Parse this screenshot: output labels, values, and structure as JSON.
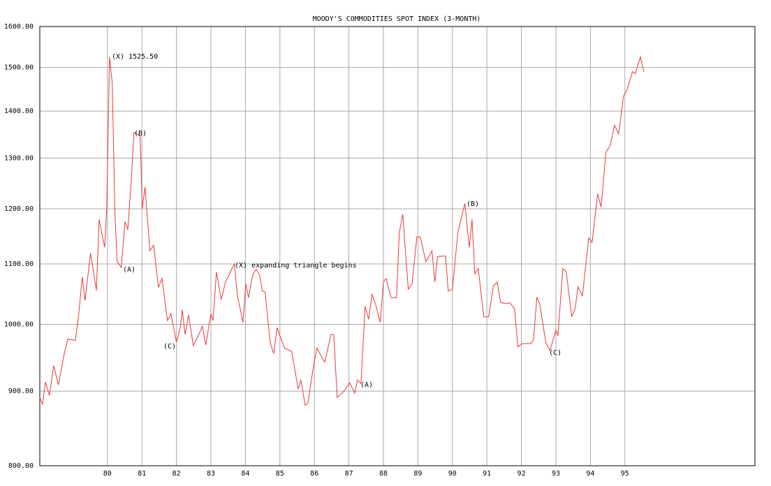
{
  "chart_data": {
    "type": "line",
    "title": "MOODY'S COMMODITIES SPOT INDEX (3-MONTH)",
    "log_scale": true,
    "grid": true,
    "xlim": [
      78.04,
      98.77
    ],
    "ylim": [
      800,
      1600
    ],
    "xticks": [
      80,
      81,
      82,
      83,
      84,
      85,
      86,
      87,
      88,
      89,
      90,
      91,
      92,
      93,
      94,
      95
    ],
    "yticks": [
      {
        "value": 800,
        "label": "800.00"
      },
      {
        "value": 900,
        "label": "900.00"
      },
      {
        "value": 1000,
        "label": "1000.00"
      },
      {
        "value": 1100,
        "label": "1100.00"
      },
      {
        "value": 1200,
        "label": "1200.00"
      },
      {
        "value": 1300,
        "label": "1300.00"
      },
      {
        "value": 1400,
        "label": "1400.00"
      },
      {
        "value": 1500,
        "label": "1500.00"
      },
      {
        "value": 1600,
        "label": "1600.00"
      }
    ],
    "x": [
      78.04,
      78.12,
      78.2,
      78.32,
      78.44,
      78.58,
      78.74,
      78.85,
      79.07,
      79.17,
      79.27,
      79.35,
      79.51,
      79.68,
      79.76,
      79.92,
      79.98,
      80.06,
      80.14,
      80.22,
      80.28,
      80.4,
      80.51,
      80.59,
      80.69,
      80.77,
      80.89,
      80.95,
      81.01,
      81.09,
      81.23,
      81.34,
      81.48,
      81.58,
      81.74,
      81.84,
      82.0,
      82.11,
      82.17,
      82.25,
      82.35,
      82.49,
      82.65,
      82.75,
      82.85,
      83.0,
      83.06,
      83.16,
      83.3,
      83.42,
      83.56,
      83.68,
      83.77,
      83.93,
      84.01,
      84.09,
      84.21,
      84.31,
      84.41,
      84.49,
      84.57,
      84.72,
      84.82,
      84.92,
      85.02,
      85.14,
      85.34,
      85.53,
      85.61,
      85.73,
      85.81,
      85.97,
      86.07,
      86.15,
      86.3,
      86.48,
      86.56,
      86.66,
      86.86,
      87.02,
      87.17,
      87.25,
      87.35,
      87.47,
      87.57,
      87.67,
      87.79,
      87.91,
      88.0,
      88.08,
      88.22,
      88.38,
      88.46,
      88.56,
      88.72,
      88.83,
      88.97,
      89.07,
      89.23,
      89.41,
      89.49,
      89.57,
      89.8,
      89.88,
      90.0,
      90.16,
      90.36,
      90.49,
      90.57,
      90.65,
      90.75,
      90.91,
      91.05,
      91.19,
      91.3,
      91.4,
      91.56,
      91.66,
      91.8,
      91.9,
      92.02,
      92.27,
      92.35,
      92.45,
      92.53,
      92.71,
      92.83,
      93.0,
      93.06,
      93.2,
      93.3,
      93.46,
      93.56,
      93.64,
      93.77,
      93.95,
      94.05,
      94.21,
      94.31,
      94.45,
      94.57,
      94.7,
      94.82,
      94.96,
      95.06,
      95.22,
      95.3,
      95.45,
      95.55
    ],
    "series": [
      {
        "color": "#e8383c",
        "values": [
          891,
          881,
          913,
          894,
          937,
          909,
          953,
          977,
          975,
          1017,
          1078,
          1038,
          1119,
          1055,
          1180,
          1129,
          1199,
          1525.5,
          1463,
          1186,
          1104,
          1094,
          1176,
          1161,
          1253,
          1354,
          1349,
          1346,
          1201,
          1242,
          1123,
          1133,
          1060,
          1075,
          1006,
          1017,
          972,
          995,
          1023,
          984,
          1015,
          967,
          984,
          997,
          968,
          1017,
          1006,
          1086,
          1040,
          1069,
          1086,
          1100,
          1046,
          1003,
          1066,
          1043,
          1081,
          1091,
          1081,
          1054,
          1052,
          971,
          955,
          995,
          979,
          963,
          958,
          903,
          916,
          880,
          883,
          935,
          963,
          956,
          942,
          984,
          984,
          891,
          900,
          912,
          897,
          916,
          911,
          1029,
          1008,
          1049,
          1029,
          1003,
          1069,
          1075,
          1043,
          1043,
          1155,
          1190,
          1057,
          1066,
          1148,
          1148,
          1104,
          1123,
          1069,
          1113,
          1114,
          1054,
          1057,
          1157,
          1210,
          1129,
          1180,
          1083,
          1092,
          1012,
          1012,
          1063,
          1069,
          1035,
          1033,
          1035,
          1025,
          965,
          970,
          970,
          976,
          1044,
          1033,
          971,
          960,
          991,
          982,
          1092,
          1086,
          1012,
          1026,
          1061,
          1046,
          1146,
          1138,
          1229,
          1203,
          1312,
          1325,
          1369,
          1351,
          1434,
          1447,
          1490,
          1485,
          1525,
          1490
        ]
      }
    ],
    "annotations": [
      "(X) 1525.50",
      "(A)",
      "(B)",
      "(C)",
      "(X) expanding triangle begins",
      "(A)",
      "(B)",
      "(C)"
    ]
  }
}
